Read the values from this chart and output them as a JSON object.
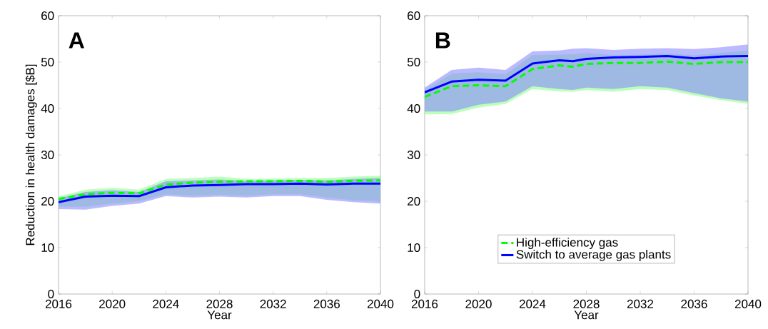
{
  "chart_data": [
    {
      "type": "line",
      "title": "A",
      "xlabel": "Year",
      "ylabel": "Reduction in health damages [$B]",
      "x": [
        2016,
        2018,
        2020,
        2022,
        2024,
        2026,
        2028,
        2030,
        2032,
        2034,
        2036,
        2038,
        2040
      ],
      "xlim": [
        2016,
        2040
      ],
      "xticks": [
        2016,
        2020,
        2024,
        2028,
        2032,
        2036,
        2040
      ],
      "ylim": [
        0,
        60
      ],
      "yticks": [
        0,
        10,
        20,
        30,
        40,
        50,
        60
      ],
      "legend": false,
      "series": [
        {
          "color": "#00ff00",
          "line_style": "dashed",
          "values": [
            20.5,
            21.5,
            21.8,
            21.7,
            23.6,
            24,
            24.2,
            24.3,
            24.3,
            24.4,
            24.2,
            24.4,
            24.5
          ],
          "lower": [
            18.8,
            18.8,
            19.5,
            20,
            21.5,
            21.2,
            21.4,
            21.2,
            21.5,
            21.5,
            20.8,
            20.2,
            20
          ],
          "upper": [
            21,
            22.5,
            22.9,
            22.5,
            24.8,
            25,
            25.3,
            24.8,
            24.9,
            25,
            25,
            25.3,
            25.5
          ]
        },
        {
          "color": "#0000ff",
          "line_style": "solid",
          "values": [
            19.8,
            21,
            21.2,
            21.1,
            23,
            23.4,
            23.5,
            23.7,
            23.7,
            23.8,
            23.6,
            23.8,
            23.8
          ],
          "lower": [
            18.3,
            18.2,
            19,
            19.5,
            21.1,
            20.8,
            21,
            20.8,
            21.1,
            21.1,
            20.3,
            19.8,
            19.5
          ],
          "upper": [
            20.6,
            22,
            22.4,
            22,
            24.3,
            24.5,
            24.7,
            24.4,
            24.5,
            24.6,
            24.5,
            24.8,
            25
          ]
        }
      ]
    },
    {
      "type": "line",
      "title": "B",
      "xlabel": "Year",
      "x": [
        2016,
        2018,
        2020,
        2022,
        2024,
        2026,
        2027,
        2028,
        2030,
        2032,
        2034,
        2036,
        2038,
        2040
      ],
      "xlim": [
        2016,
        2040
      ],
      "xticks": [
        2016,
        2020,
        2024,
        2028,
        2032,
        2036,
        2040
      ],
      "ylim": [
        0,
        60
      ],
      "yticks": [
        0,
        10,
        20,
        30,
        40,
        50,
        60
      ],
      "legend": "bottom",
      "series": [
        {
          "name": "High-efficiency gas",
          "color": "#00ff00",
          "line_style": "dashed",
          "values": [
            42.5,
            44.8,
            45,
            44.8,
            48.5,
            49.3,
            49,
            49.6,
            49.8,
            49.8,
            50.1,
            49.6,
            50,
            50
          ],
          "lower": [
            38.7,
            38.8,
            40.2,
            41,
            44.2,
            43.7,
            43.6,
            44,
            43.6,
            44.2,
            44,
            42.8,
            41.8,
            41
          ],
          "upper": [
            44,
            47.5,
            47.8,
            47.4,
            51.5,
            51.6,
            51.7,
            52,
            51.5,
            51.6,
            51.8,
            51.5,
            52,
            52.5
          ]
        },
        {
          "name": "Switch to average gas plants",
          "color": "#0000ff",
          "line_style": "solid",
          "values": [
            43.5,
            45.8,
            46.2,
            46,
            49.7,
            50.4,
            50.2,
            50.7,
            51,
            51.1,
            51.3,
            50.8,
            51.2,
            51.3
          ],
          "lower": [
            39.3,
            39.3,
            40.8,
            41.5,
            44.8,
            44.2,
            44,
            44.5,
            44.2,
            44.8,
            44.5,
            43.3,
            42.2,
            41.5
          ],
          "upper": [
            44.5,
            48.3,
            48.8,
            48.3,
            52.3,
            52.5,
            52.9,
            53,
            52.6,
            52.9,
            53,
            52.8,
            53.2,
            53.8
          ]
        }
      ]
    }
  ]
}
